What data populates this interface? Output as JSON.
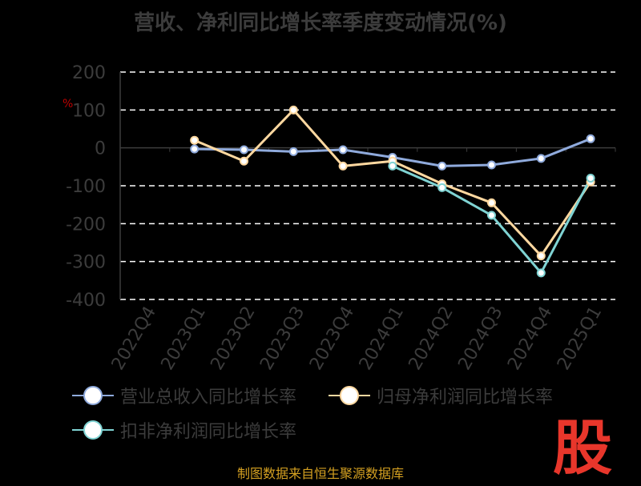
{
  "chart_data": {
    "type": "line",
    "title": "营收、净利同比增长率季度变动情况(%)",
    "ylabel": "%",
    "xlabel": "",
    "ylim": [
      -400,
      200
    ],
    "yticks": [
      200,
      100,
      0,
      -100,
      -200,
      -300,
      -400
    ],
    "grid": true,
    "legend_position": "bottom",
    "categories": [
      "2022Q4",
      "2023Q1",
      "2023Q2",
      "2023Q3",
      "2023Q4",
      "2024Q1",
      "2024Q2",
      "2024Q3",
      "2024Q4",
      "2025Q1"
    ],
    "series": [
      {
        "name": "营业总收入同比增长率",
        "color": "#8faadc",
        "values": [
          null,
          -3,
          -5,
          -10,
          -5,
          -25,
          -48,
          -45,
          -28,
          24
        ]
      },
      {
        "name": "归母净利润同比增长率",
        "color": "#ffd8a0",
        "values": [
          null,
          20,
          -35,
          100,
          -48,
          -35,
          -95,
          -145,
          -285,
          -90
        ]
      },
      {
        "name": "扣非净利润同比增长率",
        "color": "#7fd3d3",
        "values": [
          null,
          null,
          null,
          null,
          null,
          -48,
          -105,
          -178,
          -330,
          -80
        ]
      }
    ]
  },
  "source": "制图数据来自恒生聚源数据库",
  "brand": "股"
}
